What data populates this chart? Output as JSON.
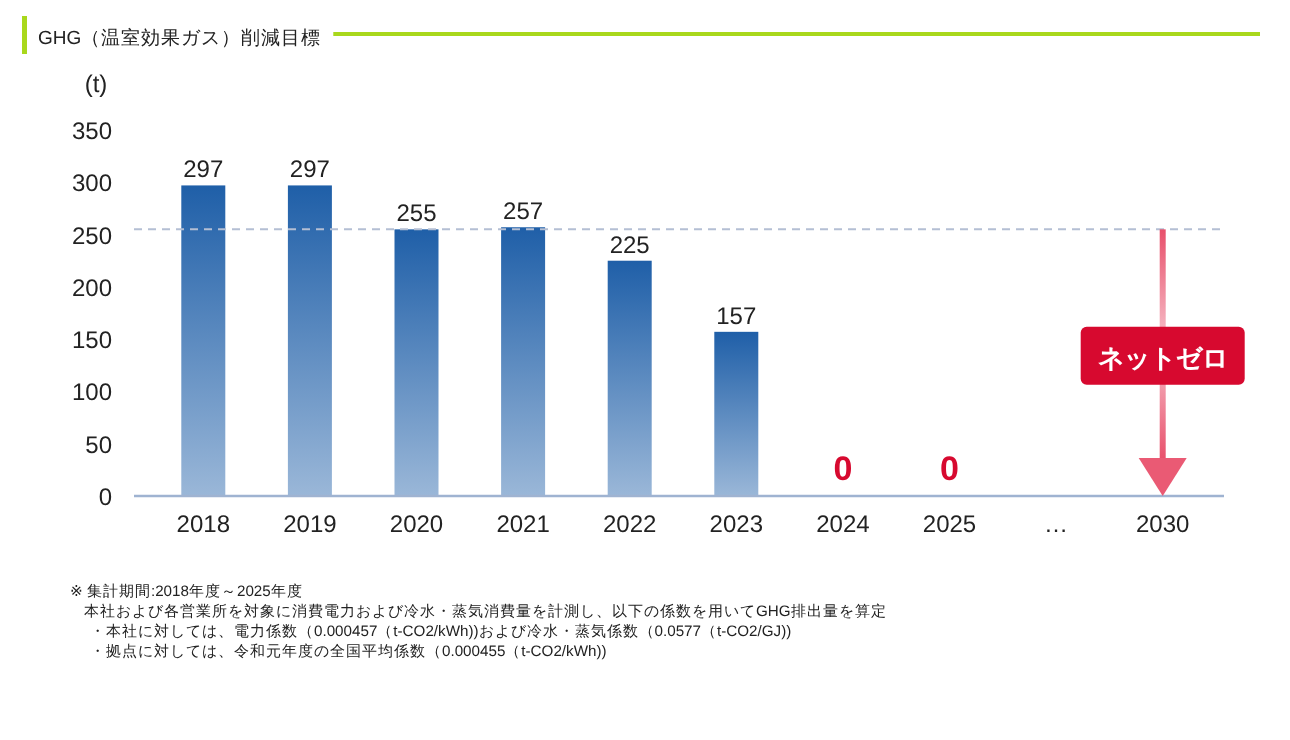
{
  "chart_data": {
    "type": "bar",
    "title": "GHG（温室効果ガス）削減目標",
    "ylabel": "(t)",
    "categories": [
      "2018",
      "2019",
      "2020",
      "2021",
      "2022",
      "2023",
      "2024",
      "2025",
      "…",
      "2030"
    ],
    "values": [
      297,
      297,
      255,
      257,
      225,
      157,
      0,
      0,
      null,
      null
    ],
    "colors": [
      "#1f5fa8",
      "#1f5fa8",
      "#1f5fa8",
      "#1f5fa8",
      "#1f5fa8",
      "#1f5fa8",
      "#d7092f",
      "#d7092f",
      "#1f5fa8",
      "#1f5fa8"
    ],
    "data_labels": true,
    "ylim": [
      0,
      350
    ],
    "yticks": [
      0,
      50,
      100,
      150,
      200,
      250,
      300,
      350
    ],
    "grid": false,
    "ref_lines": [
      {
        "axis": "y",
        "value": 255,
        "label": null,
        "color": "#b4bfd4",
        "line_style": "dashed"
      }
    ],
    "annotations": [
      "ネットゼロ",
      "※ 集計期間:2018年度～2025年度",
      "本社および各営業所を対象に消費電力および冷水・蒸気消費量を計測し、以下の係数を用いてGHG排出量を算定",
      "・本社に対しては、電力係数（0.000457（t-CO2/kWh))および冷水・蒸気係数（0.0577（t-CO2/GJ))",
      "・拠点に対しては、令和元年度の全国平均係数（0.000455（t-CO2/kWh))"
    ]
  }
}
